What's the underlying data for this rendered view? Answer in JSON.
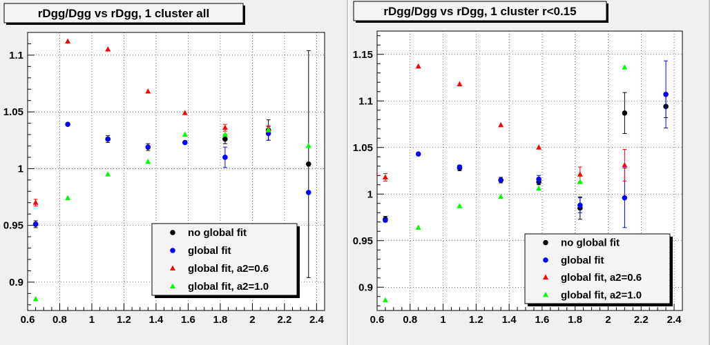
{
  "chart_data": [
    {
      "type": "scatter",
      "title": "rDgg/Dgg vs rDgg, 1 cluster all",
      "xlim": [
        0.6,
        2.45
      ],
      "ylim": [
        0.875,
        1.12
      ],
      "xticks": [
        0.6,
        0.8,
        1,
        1.2,
        1.4,
        1.6,
        1.8,
        2,
        2.2,
        2.4
      ],
      "xtick_labels": [
        "0.6",
        "0.8",
        "1",
        "1.2",
        "1.4",
        "1.6",
        "1.8",
        "2",
        "2.2",
        "2.4"
      ],
      "yticks": [
        0.9,
        0.95,
        1,
        1.05,
        1.1
      ],
      "ytick_labels": [
        "0.9",
        "0.95",
        "1",
        "1.05",
        "1.1"
      ],
      "grid": true,
      "legend_position": "bottom-right",
      "series": [
        {
          "name": "no global fit",
          "color": "#000000",
          "marker": "circle",
          "x": [
            0.65,
            1.1,
            1.35,
            1.83,
            2.1,
            2.35
          ],
          "y": [
            0.951,
            1.026,
            1.019,
            1.026,
            1.034,
            1.004
          ],
          "err": [
            0.003,
            0.003,
            0.003,
            0.004,
            0.009,
            0.1
          ]
        },
        {
          "name": "global fit",
          "color": "#0000ff",
          "marker": "circle",
          "x": [
            0.65,
            0.85,
            1.1,
            1.35,
            1.58,
            1.83,
            2.1,
            2.35
          ],
          "y": [
            0.951,
            1.039,
            1.026,
            1.019,
            1.023,
            1.01,
            1.031,
            0.979
          ],
          "err": [
            0,
            0,
            0,
            0,
            0,
            0.009,
            0.006,
            0
          ]
        },
        {
          "name": "global fit, a2=0.6",
          "color": "#ff0000",
          "marker": "triangle",
          "x": [
            0.65,
            0.85,
            1.1,
            1.35,
            1.58,
            1.83,
            2.1
          ],
          "y": [
            0.97,
            1.112,
            1.105,
            1.068,
            1.049,
            1.036,
            1.035
          ],
          "err": [
            0.003,
            0,
            0,
            0,
            0,
            0.003,
            0.003
          ]
        },
        {
          "name": "global fit, a2=1.0",
          "color": "#00ff00",
          "marker": "triangle",
          "x": [
            0.65,
            0.85,
            1.1,
            1.35,
            1.58,
            1.83,
            2.1,
            2.35
          ],
          "y": [
            0.885,
            0.974,
            0.995,
            1.006,
            1.03,
            1.03,
            1.034,
            1.02
          ],
          "err": [
            0,
            0,
            0,
            0,
            0,
            0,
            0,
            0
          ]
        }
      ]
    },
    {
      "type": "scatter",
      "title": "rDgg/Dgg vs rDgg, 1 cluster r<0.15",
      "xlim": [
        0.6,
        2.45
      ],
      "ylim": [
        0.875,
        1.175
      ],
      "xticks": [
        0.6,
        0.8,
        1,
        1.2,
        1.4,
        1.6,
        1.8,
        2,
        2.2,
        2.4
      ],
      "xtick_labels": [
        "0.6",
        "0.8",
        "1",
        "1.2",
        "1.4",
        "1.6",
        "1.8",
        "2",
        "2.2",
        "2.4"
      ],
      "yticks": [
        0.9,
        0.95,
        1,
        1.05,
        1.1,
        1.15
      ],
      "ytick_labels": [
        "0.9",
        "0.95",
        "1",
        "1.05",
        "1.1",
        "1.15"
      ],
      "grid": true,
      "legend_position": "bottom-right",
      "series": [
        {
          "name": "no global fit",
          "color": "#000000",
          "marker": "circle",
          "x": [
            0.65,
            1.1,
            1.35,
            1.58,
            1.83,
            2.1,
            2.35
          ],
          "y": [
            0.973,
            1.028,
            1.015,
            1.013,
            0.985,
            1.087,
            1.094
          ],
          "err": [
            0.003,
            0.003,
            0.003,
            0.003,
            0.012,
            0.022,
            0.012
          ]
        },
        {
          "name": "global fit",
          "color": "#0000ff",
          "marker": "circle",
          "x": [
            0.65,
            0.85,
            1.1,
            1.35,
            1.58,
            1.83,
            2.1,
            2.35
          ],
          "y": [
            0.972,
            1.043,
            1.029,
            1.015,
            1.016,
            0.988,
            0.996,
            1.107
          ],
          "err": [
            0,
            0,
            0,
            0,
            0.004,
            0.008,
            0.032,
            0.036
          ]
        },
        {
          "name": "global fit, a2=0.6",
          "color": "#ff0000",
          "marker": "triangle",
          "x": [
            0.65,
            0.85,
            1.1,
            1.35,
            1.58,
            1.83,
            2.1
          ],
          "y": [
            1.018,
            1.137,
            1.118,
            1.074,
            1.05,
            1.021,
            1.031
          ],
          "err": [
            0.004,
            0,
            0,
            0,
            0,
            0.008,
            0.017
          ]
        },
        {
          "name": "global fit, a2=1.0",
          "color": "#00ff00",
          "marker": "triangle",
          "x": [
            0.65,
            0.85,
            1.1,
            1.35,
            1.58,
            1.83,
            2.1
          ],
          "y": [
            0.886,
            0.964,
            0.987,
            0.997,
            1.006,
            1.013,
            1.136
          ],
          "err": [
            0,
            0,
            0,
            0,
            0,
            0,
            0
          ]
        }
      ]
    }
  ]
}
